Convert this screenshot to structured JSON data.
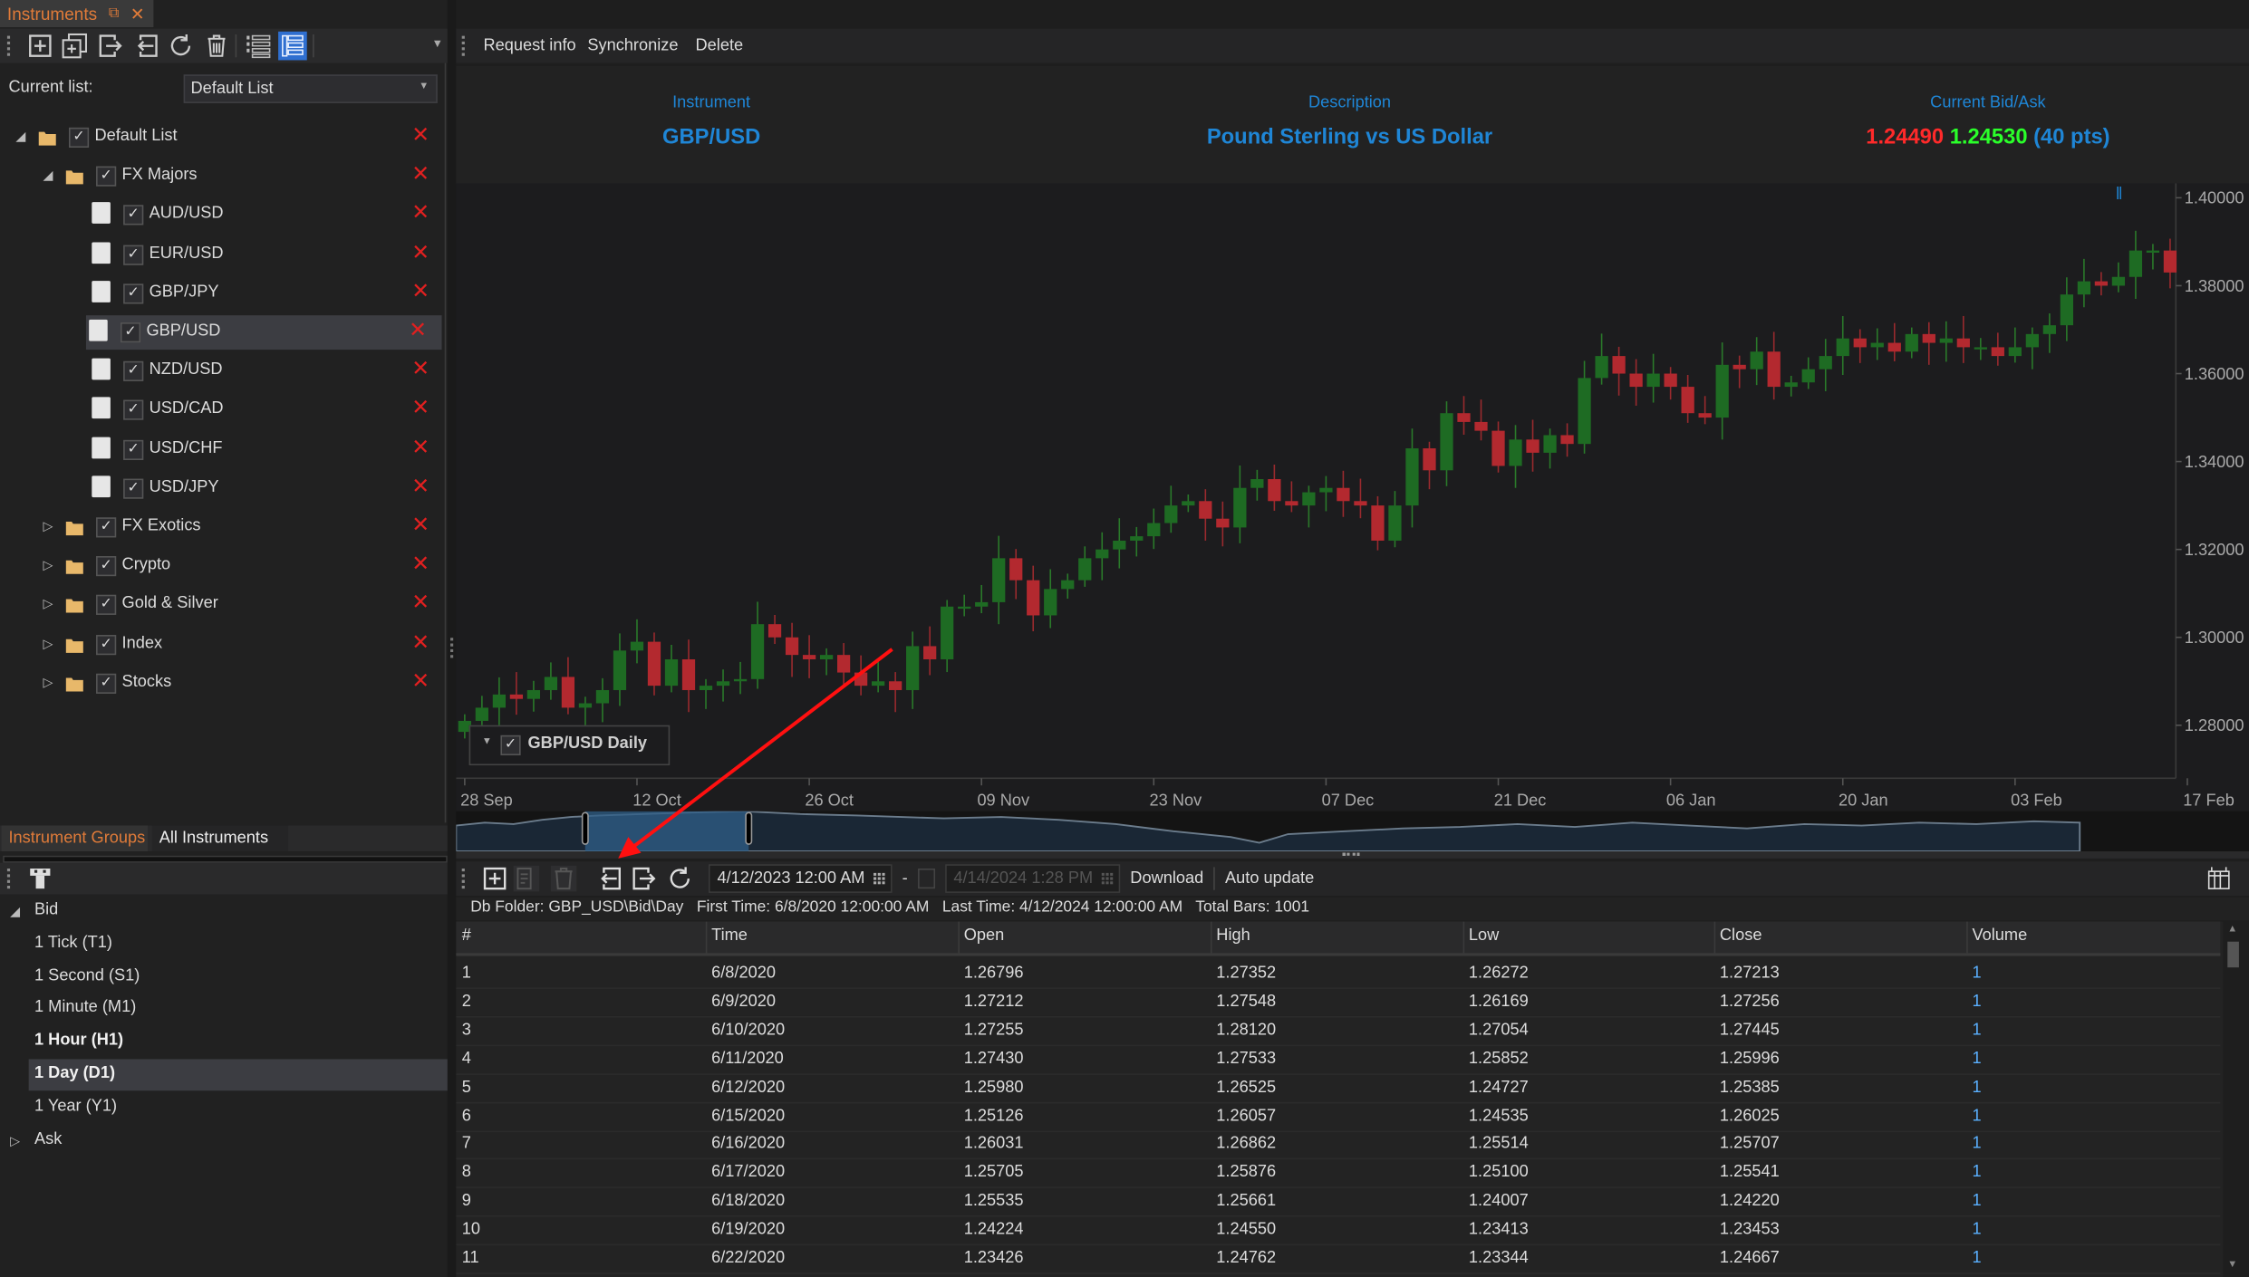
{
  "left_panel": {
    "tab_title": "Instruments",
    "toolbar_icons": [
      "add-icon",
      "add-copy-icon",
      "export-icon",
      "import-icon",
      "refresh-icon",
      "trash-icon",
      "list-dollar-icon",
      "list-detail-icon"
    ],
    "current_list_label": "Current list:",
    "current_list_value": "Default List",
    "tree": [
      {
        "label": "Default List",
        "level": 0,
        "type": "folder",
        "expanded": true,
        "checked": true
      },
      {
        "label": "FX Majors",
        "level": 1,
        "type": "folder",
        "expanded": true,
        "checked": true
      },
      {
        "label": "AUD/USD",
        "level": 2,
        "type": "instrument",
        "checked": true
      },
      {
        "label": "EUR/USD",
        "level": 2,
        "type": "instrument",
        "checked": true
      },
      {
        "label": "GBP/JPY",
        "level": 2,
        "type": "instrument",
        "checked": true
      },
      {
        "label": "GBP/USD",
        "level": 2,
        "type": "instrument",
        "checked": true,
        "selected": true
      },
      {
        "label": "NZD/USD",
        "level": 2,
        "type": "instrument",
        "checked": true
      },
      {
        "label": "USD/CAD",
        "level": 2,
        "type": "instrument",
        "checked": true
      },
      {
        "label": "USD/CHF",
        "level": 2,
        "type": "instrument",
        "checked": true
      },
      {
        "label": "USD/JPY",
        "level": 2,
        "type": "instrument",
        "checked": true
      },
      {
        "label": "FX Exotics",
        "level": 1,
        "type": "folder",
        "expanded": false,
        "checked": true
      },
      {
        "label": "Crypto",
        "level": 1,
        "type": "folder",
        "expanded": false,
        "checked": true
      },
      {
        "label": "Gold & Silver",
        "level": 1,
        "type": "folder",
        "expanded": false,
        "checked": true
      },
      {
        "label": "Index",
        "level": 1,
        "type": "folder",
        "expanded": false,
        "checked": true
      },
      {
        "label": "Stocks",
        "level": 1,
        "type": "folder",
        "expanded": false,
        "checked": true
      }
    ],
    "bottom_tabs": [
      {
        "label": "Instrument Groups",
        "active": true
      },
      {
        "label": "All Instruments",
        "active": false
      }
    ],
    "periods": [
      {
        "label": "Bid",
        "level": 0,
        "expanded": true
      },
      {
        "label": "1 Tick (T1)",
        "level": 1
      },
      {
        "label": "1 Second (S1)",
        "level": 1
      },
      {
        "label": "1 Minute (M1)",
        "level": 1
      },
      {
        "label": "1 Hour (H1)",
        "level": 1,
        "bold": true
      },
      {
        "label": "1 Day (D1)",
        "level": 1,
        "bold": true,
        "selected": true
      },
      {
        "label": "1 Year (Y1)",
        "level": 1
      },
      {
        "label": "Ask",
        "level": 0,
        "expanded": false
      }
    ]
  },
  "right_panel": {
    "toolbar": {
      "request_info": "Request info",
      "synchronize": "Synchronize",
      "delete": "Delete"
    },
    "info": {
      "instrument_label": "Instrument",
      "instrument": "GBP/USD",
      "description_label": "Description",
      "description": "Pound Sterling vs US Dollar",
      "bidask_label": "Current Bid/Ask",
      "bid": "1.24490",
      "ask": "1.24530",
      "spread": "(40 pts)"
    },
    "colors": {
      "accent": "#1f86d6",
      "bid": "#ff2a2a",
      "ask": "#2aff2a",
      "up": "#1e6b23",
      "down": "#b3292f",
      "tab_active": "#e07b39"
    },
    "lower_toolbar": {
      "start_date": "4/12/2023 12:00 AM",
      "separator": "-",
      "end_date": "4/14/2024 1:28 PM",
      "download": "Download",
      "auto_update": "Auto update"
    },
    "db_info": "Db Folder: GBP_USD\\Bid\\Day   First Time: 6/8/2020 12:00:00 AM   Last Time: 4/12/2024 12:00:00 AM   Total Bars: 1001",
    "table": {
      "columns": [
        "#",
        "Time",
        "Open",
        "High",
        "Low",
        "Close",
        "Volume"
      ],
      "rows": [
        [
          "1",
          "6/8/2020",
          "1.26796",
          "1.27352",
          "1.26272",
          "1.27213",
          "1"
        ],
        [
          "2",
          "6/9/2020",
          "1.27212",
          "1.27548",
          "1.26169",
          "1.27256",
          "1"
        ],
        [
          "3",
          "6/10/2020",
          "1.27255",
          "1.28120",
          "1.27054",
          "1.27445",
          "1"
        ],
        [
          "4",
          "6/11/2020",
          "1.27430",
          "1.27533",
          "1.25852",
          "1.25996",
          "1"
        ],
        [
          "5",
          "6/12/2020",
          "1.25980",
          "1.26525",
          "1.24727",
          "1.25385",
          "1"
        ],
        [
          "6",
          "6/15/2020",
          "1.25126",
          "1.26057",
          "1.24535",
          "1.26025",
          "1"
        ],
        [
          "7",
          "6/16/2020",
          "1.26031",
          "1.26862",
          "1.25514",
          "1.25707",
          "1"
        ],
        [
          "8",
          "6/17/2020",
          "1.25705",
          "1.25876",
          "1.25100",
          "1.25541",
          "1"
        ],
        [
          "9",
          "6/18/2020",
          "1.25535",
          "1.25661",
          "1.24007",
          "1.24220",
          "1"
        ],
        [
          "10",
          "6/19/2020",
          "1.24224",
          "1.24550",
          "1.23413",
          "1.23453",
          "1"
        ],
        [
          "11",
          "6/22/2020",
          "1.23426",
          "1.24762",
          "1.23344",
          "1.24667",
          "1"
        ]
      ]
    }
  },
  "chart_data": {
    "type": "candlestick",
    "legend": "GBP/USD Daily",
    "legend_checked": true,
    "x_tick_labels": [
      "28 Sep",
      "12 Oct",
      "26 Oct",
      "09 Nov",
      "23 Nov",
      "07 Dec",
      "21 Dec",
      "06 Jan",
      "20 Jan",
      "03 Feb",
      "17 Feb"
    ],
    "y_tick_labels": [
      "1.40000",
      "1.38000",
      "1.36000",
      "1.34000",
      "1.32000",
      "1.30000",
      "1.28000"
    ],
    "ylim": [
      1.27,
      1.404
    ],
    "first_open": 1.2785,
    "closes": [
      1.281,
      1.284,
      1.287,
      1.286,
      1.288,
      1.291,
      1.284,
      1.285,
      1.288,
      1.297,
      1.299,
      1.289,
      1.295,
      1.288,
      1.289,
      1.29,
      1.2905,
      1.303,
      1.3,
      1.296,
      1.295,
      1.296,
      1.292,
      1.289,
      1.29,
      1.288,
      1.298,
      1.295,
      1.307,
      1.307,
      1.308,
      1.318,
      1.313,
      1.305,
      1.311,
      1.313,
      1.318,
      1.32,
      1.322,
      1.323,
      1.326,
      1.33,
      1.331,
      1.327,
      1.325,
      1.334,
      1.336,
      1.331,
      1.33,
      1.333,
      1.334,
      1.331,
      1.33,
      1.322,
      1.33,
      1.343,
      1.338,
      1.351,
      1.349,
      1.347,
      1.339,
      1.345,
      1.342,
      1.346,
      1.344,
      1.359,
      1.364,
      1.36,
      1.357,
      1.36,
      1.357,
      1.351,
      1.35,
      1.362,
      1.361,
      1.365,
      1.357,
      1.358,
      1.361,
      1.364,
      1.368,
      1.366,
      1.367,
      1.365,
      1.369,
      1.367,
      1.368,
      1.366,
      1.366,
      1.364,
      1.366,
      1.369,
      1.371,
      1.378,
      1.381,
      1.38,
      1.382,
      1.388,
      1.388,
      1.383
    ]
  }
}
